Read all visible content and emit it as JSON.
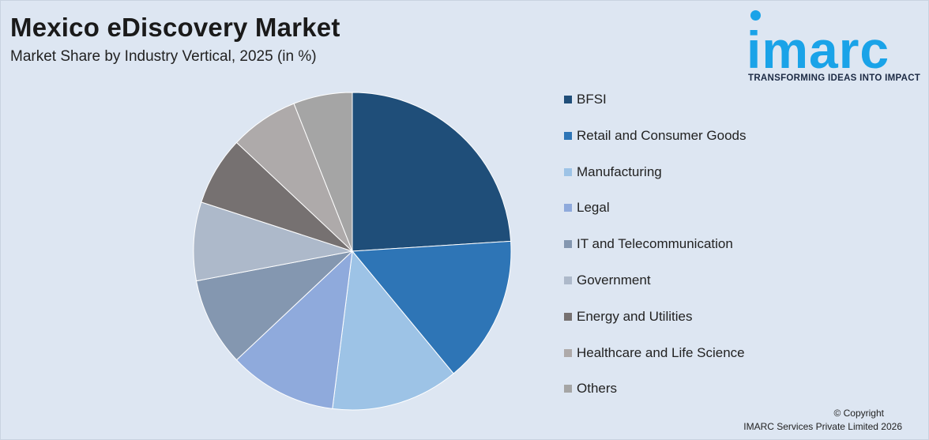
{
  "header": {
    "title": "Mexico eDiscovery Market",
    "subtitle": "Market Share by Industry Vertical, 2025 (in %)"
  },
  "logo": {
    "word": "imarc",
    "tagline": "TRANSFORMING IDEAS INTO IMPACT",
    "color": "#1aa3e8"
  },
  "chart_data": {
    "type": "pie",
    "title": "Mexico eDiscovery Market",
    "subtitle": "Market Share by Industry Vertical, 2025 (in %)",
    "legend_position": "right",
    "slices": [
      {
        "label": "BFSI",
        "value": 24,
        "color": "#1f4e79"
      },
      {
        "label": "Retail and Consumer Goods",
        "value": 15,
        "color": "#2e75b6"
      },
      {
        "label": "Manufacturing",
        "value": 13,
        "color": "#9dc3e6"
      },
      {
        "label": "Legal",
        "value": 11,
        "color": "#8faadc"
      },
      {
        "label": "IT and Telecommunication",
        "value": 9,
        "color": "#8497b0"
      },
      {
        "label": "Government",
        "value": 8,
        "color": "#adb9ca"
      },
      {
        "label": "Energy and Utilities",
        "value": 7,
        "color": "#767171"
      },
      {
        "label": "Healthcare and Life Science",
        "value": 7,
        "color": "#aeaaaa"
      },
      {
        "label": "Others",
        "value": 6,
        "color": "#a5a5a5"
      }
    ]
  },
  "footer": {
    "copyright_line1": "© Copyright",
    "copyright_line2": "IMARC Services Private Limited 2026"
  }
}
